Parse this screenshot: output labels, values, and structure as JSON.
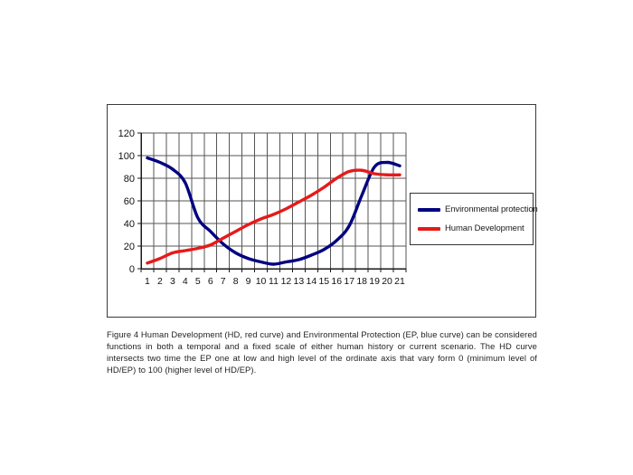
{
  "figure": {
    "caption": "Figure 4 Human Development (HD, red curve) and Environmental Protection (EP, blue curve) can be considered functions in both a temporal and a fixed scale of either human history or current scenario. The HD curve intersects two time the EP one at low and high level of the ordinate axis that vary form 0 (minimum level of HD/EP) to 100 (higher level of HD/EP)."
  },
  "chart_data": {
    "type": "line",
    "title": "",
    "xlabel": "",
    "ylabel": "",
    "categories": [
      "1",
      "2",
      "3",
      "4",
      "5",
      "6",
      "7",
      "8",
      "9",
      "10",
      "11",
      "12",
      "13",
      "14",
      "15",
      "16",
      "17",
      "18",
      "19",
      "20",
      "21"
    ],
    "x": [
      1,
      2,
      3,
      4,
      5,
      6,
      7,
      8,
      9,
      10,
      11,
      12,
      13,
      14,
      15,
      16,
      17,
      18,
      19,
      20,
      21
    ],
    "ylim": [
      0,
      120
    ],
    "yticks": [
      0,
      20,
      40,
      60,
      80,
      100,
      120
    ],
    "grid": true,
    "legend_position": "right",
    "series": [
      {
        "name": "Environmental protection",
        "color": "#000080",
        "values": [
          98,
          94,
          88,
          76,
          45,
          33,
          22,
          14,
          9,
          6,
          4,
          6,
          8,
          12,
          17,
          25,
          38,
          65,
          90,
          94,
          91
        ]
      },
      {
        "name": "Human Development",
        "color": "#e61a1a",
        "values": [
          5,
          9,
          14,
          16,
          18,
          21,
          27,
          33,
          39,
          44,
          48,
          53,
          59,
          65,
          72,
          80,
          86,
          87,
          84,
          83,
          83
        ]
      }
    ],
    "style": {
      "grid_color": "#555555",
      "axis_color": "#1a1a1a",
      "line_width": 3.4
    }
  }
}
